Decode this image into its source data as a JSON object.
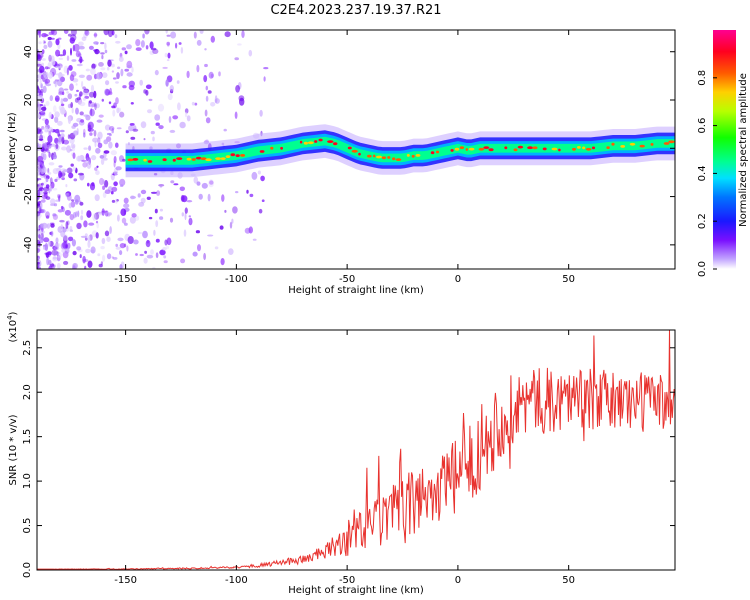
{
  "title": "C2E4.2023.237.19.37.R21",
  "chart_data": [
    {
      "type": "heatmap",
      "name": "spectrogram",
      "xlabel": "Height of straight line (km)",
      "ylabel": "Frequency (Hz)",
      "xlim": [
        -190,
        98
      ],
      "ylim": [
        -50,
        49
      ],
      "xticks": [
        -150,
        -100,
        -50,
        0,
        50
      ],
      "yticks": [
        -40,
        -20,
        0,
        20,
        40
      ],
      "ridge": {
        "x": [
          -150,
          -140,
          -130,
          -120,
          -110,
          -100,
          -90,
          -80,
          -70,
          -60,
          -55,
          -50,
          -45,
          -40,
          -35,
          -30,
          -25,
          -20,
          -15,
          -10,
          -5,
          0,
          5,
          10,
          20,
          30,
          40,
          50,
          60,
          70,
          80,
          90,
          98
        ],
        "y": [
          -5,
          -5,
          -5,
          -5,
          -4,
          -3,
          -1,
          0,
          2,
          3,
          2,
          0,
          -2,
          -3,
          -4,
          -4,
          -4,
          -3,
          -3,
          -2,
          -1,
          0,
          -1,
          0,
          0,
          0,
          0,
          0,
          0,
          1,
          1,
          2,
          2
        ]
      },
      "colorbar": {
        "label": "Normalized spectral amplitude",
        "range": [
          0,
          1
        ],
        "ticks": [
          "0.0",
          "0.2",
          "0.4",
          "0.6",
          "0.8"
        ],
        "tick_values": [
          0.0,
          0.2,
          0.4,
          0.6,
          0.8
        ]
      }
    },
    {
      "type": "line",
      "name": "snr",
      "xlabel": "Height of straight line (km)",
      "ylabel": "SNR (10 * v/v)",
      "exponent_label": "(x10",
      "exponent_power": "4",
      "exponent_close": ")",
      "xlim": [
        -190,
        98
      ],
      "ylim": [
        0,
        2.7
      ],
      "xticks": [
        -150,
        -100,
        -50,
        0,
        50
      ],
      "yticks": [
        "0.0",
        "0.5",
        "1.0",
        "1.5",
        "2.0",
        "2.5"
      ],
      "ytick_values": [
        0.0,
        0.5,
        1.0,
        1.5,
        2.0,
        2.5
      ],
      "color": "#e8322e",
      "trend": {
        "x": [
          -190,
          -150,
          -120,
          -100,
          -90,
          -80,
          -70,
          -60,
          -50,
          -45,
          -40,
          -35,
          -30,
          -25,
          -20,
          -15,
          -10,
          -5,
          0,
          5,
          10,
          15,
          20,
          25,
          30,
          40,
          50,
          60,
          70,
          80,
          90,
          98
        ],
        "y": [
          0.01,
          0.01,
          0.02,
          0.03,
          0.05,
          0.08,
          0.12,
          0.2,
          0.35,
          0.42,
          0.5,
          0.55,
          0.6,
          0.65,
          0.75,
          0.85,
          0.9,
          0.95,
          1.05,
          1.2,
          1.4,
          1.55,
          1.7,
          1.8,
          1.9,
          1.9,
          1.95,
          1.92,
          1.9,
          1.9,
          1.9,
          1.9
        ]
      },
      "noise": {
        "x": [
          -190,
          -100,
          -80,
          -60,
          -50,
          -40,
          -30,
          -20,
          -10,
          0,
          10,
          20,
          30,
          50,
          98
        ],
        "amp": [
          0.0,
          0.01,
          0.03,
          0.08,
          0.2,
          0.3,
          0.35,
          0.4,
          0.4,
          0.45,
          0.5,
          0.45,
          0.4,
          0.35,
          0.35
        ]
      }
    }
  ]
}
